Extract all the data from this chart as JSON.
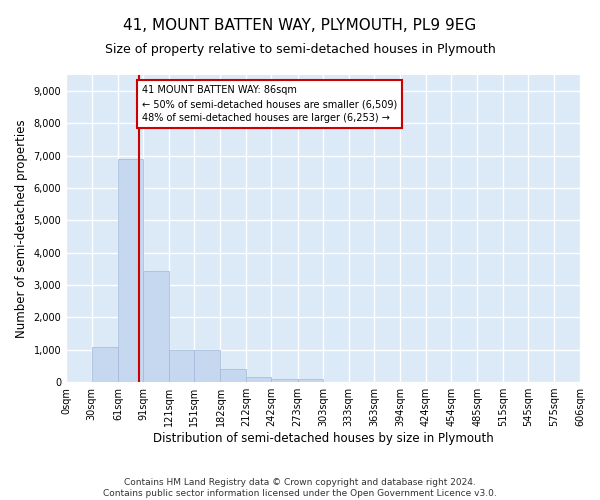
{
  "title": "41, MOUNT BATTEN WAY, PLYMOUTH, PL9 9EG",
  "subtitle": "Size of property relative to semi-detached houses in Plymouth",
  "xlabel": "Distribution of semi-detached houses by size in Plymouth",
  "ylabel": "Number of semi-detached properties",
  "bar_color": "#c5d8f0",
  "bar_edge_color": "#a0b8d8",
  "background_color": "#dce9f7",
  "grid_color": "#ffffff",
  "annotation_text": "41 MOUNT BATTEN WAY: 86sqm\n← 50% of semi-detached houses are smaller (6,509)\n48% of semi-detached houses are larger (6,253) →",
  "vline_x": 86,
  "vline_color": "#cc0000",
  "annotation_box_color": "#cc0000",
  "ylim": [
    0,
    9500
  ],
  "yticks": [
    0,
    1000,
    2000,
    3000,
    4000,
    5000,
    6000,
    7000,
    8000,
    9000
  ],
  "bin_edges": [
    0,
    30,
    61,
    91,
    121,
    151,
    182,
    212,
    242,
    273,
    303,
    333,
    363,
    394,
    424,
    454,
    485,
    515,
    545,
    575,
    606
  ],
  "bar_heights": [
    0,
    1100,
    6900,
    3450,
    1000,
    1000,
    400,
    150,
    100,
    100,
    0,
    0,
    0,
    0,
    0,
    0,
    0,
    0,
    0,
    0
  ],
  "footer_text": "Contains HM Land Registry data © Crown copyright and database right 2024.\nContains public sector information licensed under the Open Government Licence v3.0.",
  "title_fontsize": 11,
  "subtitle_fontsize": 9,
  "axis_label_fontsize": 8.5,
  "tick_fontsize": 7,
  "footer_fontsize": 6.5,
  "annotation_fontsize": 7
}
